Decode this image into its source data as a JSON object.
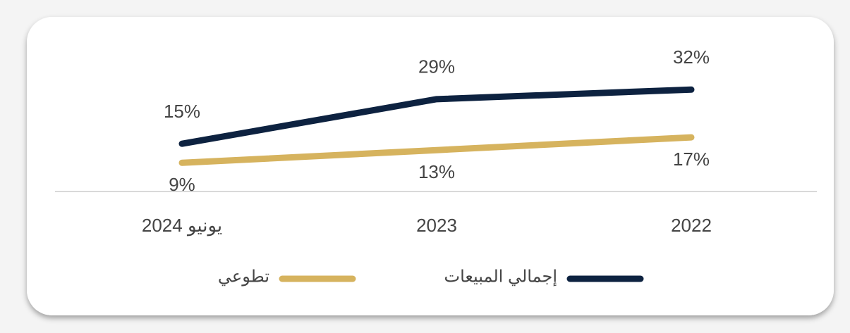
{
  "chart_data": {
    "type": "line",
    "categories": [
      "يونيو 2024",
      "2023",
      "2022"
    ],
    "series": [
      {
        "name": "إجمالي المبيعات",
        "color": "#0d2240",
        "values": [
          15,
          29,
          32
        ],
        "value_labels": [
          "15%",
          "29%",
          "32%"
        ]
      },
      {
        "name": "تطوعي",
        "color": "#d6b35e",
        "values": [
          9,
          13,
          17
        ],
        "value_labels": [
          "9%",
          "13%",
          "17%"
        ]
      }
    ],
    "ylim": [
      0,
      32.5
    ]
  }
}
